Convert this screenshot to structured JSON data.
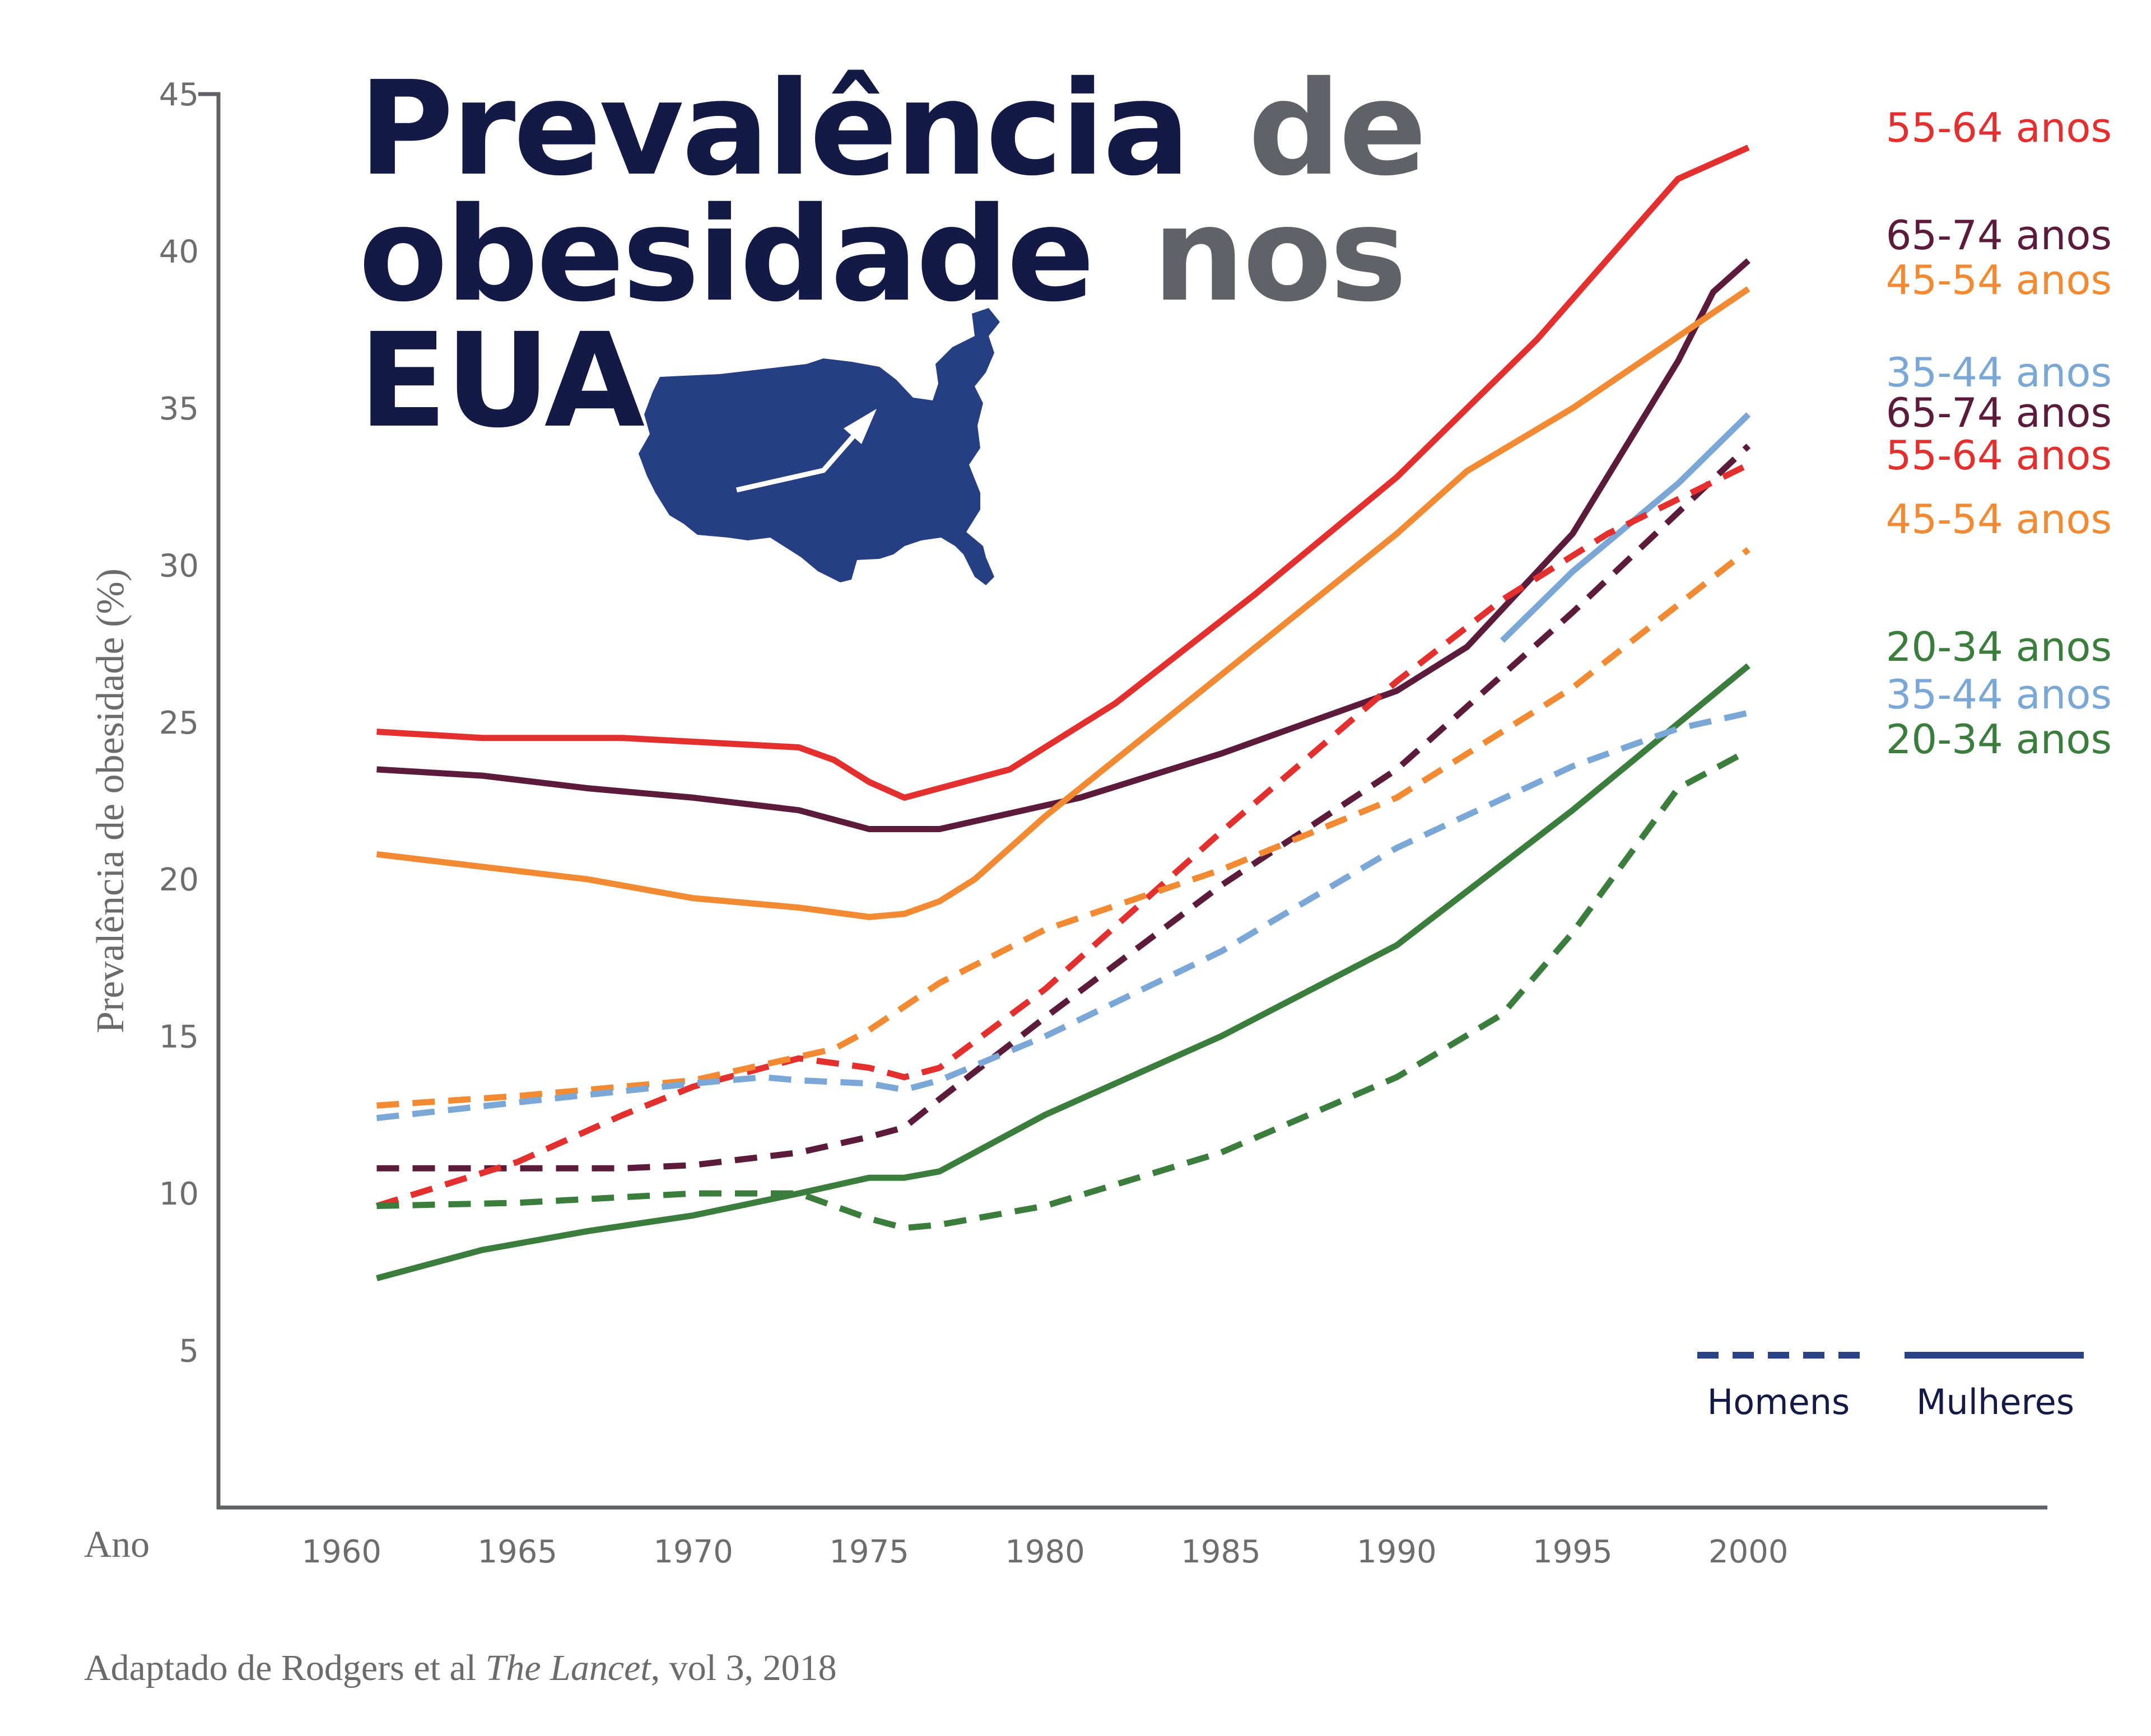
{
  "chart_data": {
    "type": "line",
    "title": {
      "line1_bold": "Prevalência",
      "line1_light": "de",
      "line2_bold": "obesidade",
      "line2_light": "nos",
      "line3_bold": "EUA"
    },
    "ylabel": "Prevalência de obesidade (%)",
    "xlabel": "Ano",
    "source": {
      "prefix": "Adaptado de Rodgers et al ",
      "journal": "The Lancet",
      "suffix": ", vol 3, 2018"
    },
    "ylim": [
      0,
      45
    ],
    "xlim": [
      1956.5,
      2008.5
    ],
    "y_ticks": [
      "5",
      "10",
      "15",
      "20",
      "25",
      "30",
      "35",
      "40",
      "45"
    ],
    "x_ticks": [
      "1960",
      "1965",
      "1970",
      "1975",
      "1980",
      "1985",
      "1990",
      "1995",
      "2000"
    ],
    "legend": {
      "men": "Homens",
      "women": "Mulheres",
      "men_color": "#2b4287",
      "women_color": "#2b4287",
      "position": "bottom-right"
    },
    "colors": {
      "title_dark": "#131a46",
      "title_gray": "#5f6367",
      "map": "#263f82",
      "axis": "#5f6367",
      "tick_text": "#6d6d6d"
    },
    "series": [
      {
        "name": "55-64 anos",
        "sex": "Mulheres",
        "style": "solid",
        "color": "#e3302f",
        "x": [
          1961,
          1964,
          1968,
          1973,
          1974,
          1975,
          1976,
          1977,
          1979,
          1982,
          1986,
          1990,
          1994,
          1998,
          2000
        ],
        "y": [
          24.7,
          24.5,
          24.5,
          24.2,
          23.8,
          23.1,
          22.6,
          22.9,
          23.5,
          25.6,
          29.1,
          32.8,
          37.2,
          42.3,
          43.3
        ]
      },
      {
        "name": "65-74 anos",
        "sex": "Mulheres",
        "style": "solid",
        "color": "#5c1b3b",
        "x": [
          1961,
          1964,
          1967,
          1970,
          1973,
          1975,
          1977,
          1981,
          1985,
          1990,
          1992,
          1995,
          1998,
          1999,
          2000
        ],
        "y": [
          23.5,
          23.3,
          22.9,
          22.6,
          22.2,
          21.6,
          21.6,
          22.6,
          24.0,
          26.0,
          27.4,
          31.0,
          36.5,
          38.7,
          39.7
        ]
      },
      {
        "name": "45-54 anos",
        "sex": "Mulheres",
        "style": "solid",
        "color": "#f18a32",
        "x": [
          1961,
          1964,
          1967,
          1970,
          1973,
          1975,
          1976,
          1977,
          1978,
          1980,
          1985,
          1990,
          1992,
          1995,
          2000
        ],
        "y": [
          20.8,
          20.4,
          20.0,
          19.4,
          19.1,
          18.8,
          18.9,
          19.3,
          20.0,
          22.0,
          26.5,
          31.0,
          33.0,
          35.0,
          38.8
        ]
      },
      {
        "name": "35-44 anos",
        "sex": "Mulheres",
        "style": "solid",
        "color": "#7aa7d6",
        "x": [
          1993,
          1995,
          1998,
          2000
        ],
        "y": [
          27.6,
          29.8,
          32.6,
          34.8
        ]
      },
      {
        "name": "20-34 anos",
        "sex": "Mulheres",
        "style": "solid",
        "color": "#3a7d3c",
        "x": [
          1961,
          1964,
          1967,
          1970,
          1973,
          1975,
          1976,
          1977,
          1980,
          1985,
          1990,
          1995,
          2000
        ],
        "y": [
          7.3,
          8.2,
          8.8,
          9.3,
          10.0,
          10.5,
          10.5,
          10.7,
          12.5,
          15.0,
          17.9,
          22.2,
          26.8
        ]
      },
      {
        "name": "65-74 anos",
        "sex": "Homens",
        "style": "dashed",
        "color": "#5c1b3b",
        "x": [
          1961,
          1965,
          1968,
          1970,
          1973,
          1975,
          1976,
          1977,
          1980,
          1985,
          1990,
          1995,
          2000
        ],
        "y": [
          10.8,
          10.8,
          10.8,
          10.9,
          11.3,
          11.8,
          12.1,
          13.0,
          15.6,
          19.8,
          23.5,
          28.5,
          33.8
        ]
      },
      {
        "name": "55-64 anos",
        "sex": "Homens",
        "style": "dashed",
        "color": "#e3302f",
        "x": [
          1961,
          1963,
          1965,
          1968,
          1970,
          1973,
          1975,
          1976,
          1977,
          1980,
          1985,
          1990,
          1993,
          1996,
          2000
        ],
        "y": [
          9.6,
          10.3,
          11.0,
          12.5,
          13.4,
          14.3,
          14.0,
          13.7,
          14.0,
          16.5,
          21.5,
          26.3,
          28.9,
          31.0,
          33.2
        ]
      },
      {
        "name": "45-54 anos",
        "sex": "Homens",
        "style": "dashed",
        "color": "#f18a32",
        "x": [
          1961,
          1965,
          1970,
          1974,
          1975,
          1977,
          1980,
          1985,
          1990,
          1995,
          2000
        ],
        "y": [
          12.8,
          13.1,
          13.6,
          14.6,
          15.2,
          16.7,
          18.4,
          20.3,
          22.6,
          26.1,
          30.5
        ]
      },
      {
        "name": "35-44 anos",
        "sex": "Homens",
        "style": "dashed",
        "color": "#7aa7d6",
        "x": [
          1961,
          1965,
          1970,
          1972,
          1973,
          1975,
          1976,
          1977,
          1980,
          1985,
          1990,
          1995,
          1998,
          2000
        ],
        "y": [
          12.4,
          12.9,
          13.5,
          13.7,
          13.6,
          13.5,
          13.3,
          13.6,
          15.0,
          17.7,
          21.0,
          23.6,
          24.8,
          25.3
        ]
      },
      {
        "name": "20-34 anos",
        "sex": "Homens",
        "style": "dashed",
        "color": "#3a7d3c",
        "x": [
          1961,
          1965,
          1970,
          1973,
          1975,
          1976,
          1977,
          1980,
          1985,
          1990,
          1993,
          1995,
          1998,
          2000
        ],
        "y": [
          9.6,
          9.7,
          10.0,
          10.0,
          9.2,
          8.9,
          9.0,
          9.6,
          11.3,
          13.7,
          15.7,
          18.3,
          22.9,
          24.1
        ]
      }
    ],
    "right_labels": [
      {
        "text": "55-64 anos",
        "color": "#e3302f"
      },
      {
        "text": "65-74 anos",
        "color": "#5c1b3b"
      },
      {
        "text": "45-54 anos",
        "color": "#f18a32"
      },
      {
        "text": "35-44 anos",
        "color": "#7aa7d6"
      },
      {
        "text": "65-74 anos",
        "color": "#5c1b3b"
      },
      {
        "text": "55-64 anos",
        "color": "#e3302f"
      },
      {
        "text": "45-54 anos",
        "color": "#f18a32"
      },
      {
        "text": "20-34 anos",
        "color": "#3a7d3c"
      },
      {
        "text": "35-44 anos",
        "color": "#7aa7d6"
      },
      {
        "text": "20-34 anos",
        "color": "#3a7d3c"
      }
    ]
  }
}
